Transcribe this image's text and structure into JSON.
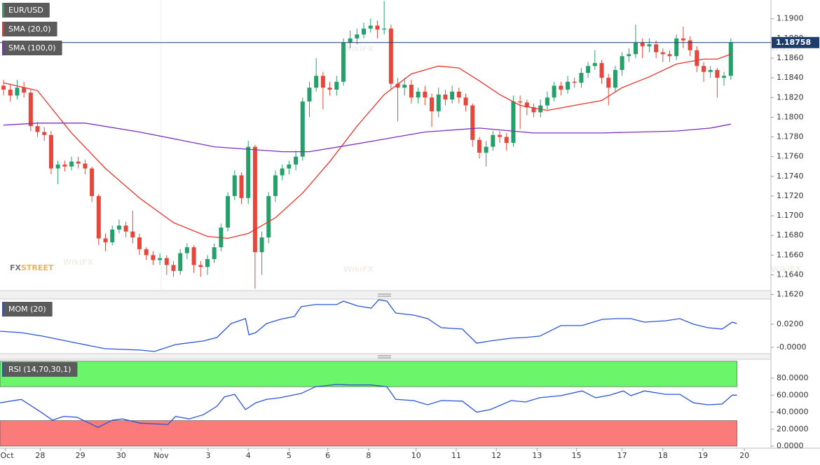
{
  "chart_data": [
    {
      "type": "candlestick",
      "xlim": [
        -0.52,
        112.9
      ],
      "ylim": [
        1.1624,
        1.1919
      ],
      "yticks": [
        {
          "value": 1.162,
          "label": "1.1620"
        },
        {
          "value": 1.164,
          "label": "1.1640"
        },
        {
          "value": 1.166,
          "label": "1.1660"
        },
        {
          "value": 1.168,
          "label": "1.1680"
        },
        {
          "value": 1.17,
          "label": "1.1700"
        },
        {
          "value": 1.172,
          "label": "1.1720"
        },
        {
          "value": 1.174,
          "label": "1.1740"
        },
        {
          "value": 1.176,
          "label": "1.1760"
        },
        {
          "value": 1.178,
          "label": "1.1780"
        },
        {
          "value": 1.18,
          "label": "1.1800"
        },
        {
          "value": 1.182,
          "label": "1.1820"
        },
        {
          "value": 1.184,
          "label": "1.1840"
        },
        {
          "value": 1.186,
          "label": "1.1860"
        },
        {
          "value": 1.188,
          "label": "1.1880"
        },
        {
          "value": 1.19,
          "label": "1.1900"
        }
      ],
      "last_price": 1.18758,
      "brand": [
        "FX",
        "STREET"
      ],
      "watermark": "WikiFX",
      "series": [
        {
          "name": "EUR/USD",
          "up_color": "#25a06b",
          "down_color": "#e4473b",
          "open": [
            1.1832,
            1.1828,
            1.1822,
            1.183,
            1.1825,
            1.1791,
            1.1785,
            1.1782,
            1.1748,
            1.1752,
            1.175,
            1.1755,
            1.1753,
            1.1748,
            1.172,
            1.1677,
            1.1673,
            1.1686,
            1.169,
            1.1684,
            1.1678,
            1.1666,
            1.166,
            1.1655,
            1.1657,
            1.165,
            1.1644,
            1.1662,
            1.1668,
            1.165,
            1.1648,
            1.1656,
            1.1668,
            1.1688,
            1.172,
            1.1741,
            1.1718,
            1.177,
            1.1663,
            1.1678,
            1.172,
            1.1741,
            1.1748,
            1.1752,
            1.176,
            1.1816,
            1.183,
            1.1842,
            1.183,
            1.1828,
            1.1836,
            1.1876,
            1.188,
            1.1884,
            1.189,
            1.1893,
            1.1889,
            1.189,
            1.1834,
            1.183,
            1.1833,
            1.182,
            1.1826,
            1.182,
            1.1806,
            1.1823,
            1.1818,
            1.1826,
            1.182,
            1.1812,
            1.1777,
            1.1764,
            1.177,
            1.1782,
            1.178,
            1.1774,
            1.1816,
            1.1815,
            1.181,
            1.1805,
            1.1812,
            1.182,
            1.1832,
            1.1828,
            1.1836,
            1.1835,
            1.1845,
            1.1852,
            1.1855,
            1.184,
            1.183,
            1.1848,
            1.1862,
            1.1864,
            1.1876,
            1.1872,
            1.1874,
            1.1866,
            1.1864,
            1.1862,
            1.188,
            1.1878,
            1.1868,
            1.1852,
            1.1846,
            1.1848,
            1.184,
            1.1842
          ],
          "high": [
            1.1838,
            1.1834,
            1.1838,
            1.1836,
            1.1828,
            1.1795,
            1.179,
            1.1786,
            1.1756,
            1.1756,
            1.176,
            1.176,
            1.1757,
            1.175,
            1.1722,
            1.1682,
            1.169,
            1.1696,
            1.1694,
            1.1705,
            1.1682,
            1.1668,
            1.1664,
            1.1662,
            1.166,
            1.1654,
            1.1666,
            1.1672,
            1.167,
            1.1654,
            1.166,
            1.1672,
            1.1692,
            1.1724,
            1.1746,
            1.1744,
            1.1776,
            1.1772,
            1.1684,
            1.1724,
            1.1746,
            1.1752,
            1.1756,
            1.1766,
            1.182,
            1.1836,
            1.186,
            1.1846,
            1.1836,
            1.1842,
            1.188,
            1.1888,
            1.189,
            1.1896,
            1.19,
            1.1898,
            1.1918,
            1.1894,
            1.184,
            1.184,
            1.1838,
            1.183,
            1.1832,
            1.1824,
            1.183,
            1.1828,
            1.1832,
            1.183,
            1.1824,
            1.1814,
            1.178,
            1.1776,
            1.1786,
            1.1786,
            1.1784,
            1.1822,
            1.1822,
            1.1818,
            1.1814,
            1.1818,
            1.1826,
            1.1836,
            1.1836,
            1.1842,
            1.184,
            1.185,
            1.1856,
            1.1868,
            1.1858,
            1.1844,
            1.1852,
            1.1866,
            1.187,
            1.1894,
            1.188,
            1.188,
            1.1878,
            1.187,
            1.1868,
            1.1884,
            1.1892,
            1.1882,
            1.1872,
            1.1856,
            1.1852,
            1.185,
            1.1846,
            1.188
          ],
          "low": [
            1.1822,
            1.1816,
            1.1818,
            1.182,
            1.1786,
            1.178,
            1.1776,
            1.1742,
            1.1732,
            1.1745,
            1.1746,
            1.1748,
            1.1742,
            1.1714,
            1.167,
            1.1664,
            1.167,
            1.1682,
            1.1678,
            1.1672,
            1.166,
            1.1655,
            1.165,
            1.165,
            1.164,
            1.1638,
            1.164,
            1.1656,
            1.1642,
            1.1638,
            1.164,
            1.1652,
            1.1664,
            1.1684,
            1.1716,
            1.1712,
            1.1712,
            1.1626,
            1.164,
            1.1672,
            1.1714,
            1.1736,
            1.1742,
            1.1746,
            1.1756,
            1.18,
            1.1826,
            1.1808,
            1.1822,
            1.1822,
            1.1832,
            1.187,
            1.1874,
            1.188,
            1.1886,
            1.188,
            1.1884,
            1.1828,
            1.1796,
            1.1822,
            1.1814,
            1.1814,
            1.1812,
            1.179,
            1.18,
            1.1812,
            1.1814,
            1.1814,
            1.1806,
            1.177,
            1.1758,
            1.175,
            1.1766,
            1.1774,
            1.1766,
            1.177,
            1.1788,
            1.1802,
            1.18,
            1.18,
            1.1808,
            1.1816,
            1.1822,
            1.1824,
            1.183,
            1.183,
            1.184,
            1.1848,
            1.1834,
            1.1812,
            1.1826,
            1.1842,
            1.1856,
            1.186,
            1.186,
            1.1866,
            1.186,
            1.1856,
            1.1856,
            1.1858,
            1.187,
            1.1862,
            1.1846,
            1.1836,
            1.184,
            1.182,
            1.1832,
            1.1838
          ],
          "close": [
            1.1828,
            1.1822,
            1.183,
            1.1825,
            1.1791,
            1.1785,
            1.1782,
            1.1748,
            1.1752,
            1.175,
            1.1755,
            1.1753,
            1.1748,
            1.172,
            1.1677,
            1.1673,
            1.1686,
            1.169,
            1.1684,
            1.1678,
            1.1666,
            1.166,
            1.1655,
            1.1657,
            1.165,
            1.1644,
            1.1662,
            1.1668,
            1.165,
            1.1648,
            1.1656,
            1.1668,
            1.1688,
            1.172,
            1.1741,
            1.1718,
            1.177,
            1.1663,
            1.1678,
            1.172,
            1.1741,
            1.1748,
            1.1752,
            1.176,
            1.1816,
            1.183,
            1.1842,
            1.183,
            1.1828,
            1.1836,
            1.1876,
            1.188,
            1.1884,
            1.189,
            1.1893,
            1.1889,
            1.189,
            1.1834,
            1.183,
            1.1833,
            1.182,
            1.1826,
            1.182,
            1.1806,
            1.1823,
            1.1818,
            1.1826,
            1.182,
            1.1812,
            1.1777,
            1.1764,
            1.177,
            1.1782,
            1.178,
            1.1774,
            1.1816,
            1.1815,
            1.181,
            1.1805,
            1.1812,
            1.182,
            1.1832,
            1.1828,
            1.1836,
            1.1835,
            1.1845,
            1.1852,
            1.1855,
            1.184,
            1.183,
            1.1848,
            1.1862,
            1.1864,
            1.1876,
            1.1872,
            1.1874,
            1.1866,
            1.1864,
            1.1862,
            1.188,
            1.1878,
            1.1868,
            1.1852,
            1.1846,
            1.1848,
            1.184,
            1.1842,
            1.1876
          ]
        },
        {
          "name": "SMA (20,0)",
          "color": "#e8332a",
          "x": [
            0,
            5,
            10,
            15,
            20,
            25,
            30,
            33,
            36,
            40,
            44,
            48,
            52,
            56,
            60,
            64,
            67,
            70,
            73,
            76,
            80,
            84,
            88,
            91,
            95,
            99,
            103,
            105,
            107
          ],
          "values": [
            1.1835,
            1.1827,
            1.1784,
            1.1748,
            1.1718,
            1.1693,
            1.1679,
            1.1677,
            1.1682,
            1.1698,
            1.1723,
            1.1755,
            1.1791,
            1.1823,
            1.1844,
            1.1852,
            1.185,
            1.1837,
            1.1823,
            1.1812,
            1.1807,
            1.1812,
            1.1817,
            1.183,
            1.1841,
            1.1854,
            1.1859,
            1.1859,
            1.1864
          ]
        },
        {
          "name": "SMA (100,0)",
          "color": "#7b2fbf",
          "x": [
            0,
            5,
            12,
            20,
            31,
            41,
            45,
            52,
            62,
            70,
            78,
            88,
            99,
            104,
            107
          ],
          "values": [
            1.1792,
            1.1794,
            1.1794,
            1.1785,
            1.177,
            1.1765,
            1.1765,
            1.1773,
            1.1785,
            1.1789,
            1.1784,
            1.1784,
            1.1786,
            1.1789,
            1.1793
          ]
        }
      ]
    },
    {
      "type": "line",
      "xlim": [
        -0.52,
        112.9
      ],
      "ylim": [
        -0.0055,
        0.0418
      ],
      "yticks": [
        {
          "value": 0.02,
          "label": "0.0200"
        },
        {
          "value": 0,
          "label": "-0.0000"
        }
      ],
      "series": [
        {
          "name": "MOM (20)",
          "color": "#2a55d4",
          "x": [
            -0.5,
            2.6,
            5.7,
            9.8,
            14.9,
            20.1,
            22.2,
            25.3,
            29.4,
            31.4,
            33.5,
            35.6,
            36.1,
            37.1,
            38.7,
            40.7,
            42.8,
            43.8,
            45.9,
            49,
            50,
            52.1,
            54.1,
            55.2,
            56.4,
            57.7,
            60.3,
            62.4,
            64.4,
            67.5,
            69.6,
            71.6,
            74.7,
            76.8,
            78.9,
            82,
            85.1,
            88.1,
            90.2,
            92.3,
            94.3,
            97.4,
            99.5,
            101.5,
            103.6,
            105.7,
            107.2,
            107.9
          ],
          "values": [
            0.0139,
            0.0127,
            0.0097,
            0.0048,
            -0.0012,
            -0.0024,
            -0.0036,
            0.0024,
            0.0055,
            0.0085,
            0.0206,
            0.0248,
            0.0109,
            0.0127,
            0.0206,
            0.0242,
            0.0267,
            0.0352,
            0.037,
            0.037,
            0.04,
            0.0358,
            0.0339,
            0.0412,
            0.04,
            0.0297,
            0.0279,
            0.0248,
            0.017,
            0.0158,
            0.0036,
            0.0055,
            0.0079,
            0.0085,
            0.0097,
            0.0188,
            0.0188,
            0.0242,
            0.0248,
            0.0248,
            0.0218,
            0.023,
            0.0248,
            0.02,
            0.017,
            0.0158,
            0.0218,
            0.0206
          ]
        }
      ]
    },
    {
      "type": "line",
      "xlim": [
        -0.52,
        112.9
      ],
      "ylim": [
        0,
        102.3
      ],
      "yticks": [
        {
          "value": 80,
          "label": "80.0000"
        },
        {
          "value": 60,
          "label": "60.0000"
        },
        {
          "value": 40,
          "label": "40.0000"
        },
        {
          "value": 20,
          "label": "20.0000"
        },
        {
          "value": 0,
          "label": "0.0000"
        }
      ],
      "xticks": [
        {
          "value": 0.3,
          "label": "Oct"
        },
        {
          "value": 5.4,
          "label": "28"
        },
        {
          "value": 11.3,
          "label": "29"
        },
        {
          "value": 17.3,
          "label": "30"
        },
        {
          "value": 23.2,
          "label": "Nov"
        },
        {
          "value": 30.1,
          "label": "3"
        },
        {
          "value": 36,
          "label": "4"
        },
        {
          "value": 42,
          "label": "5"
        },
        {
          "value": 47.7,
          "label": "6"
        },
        {
          "value": 53.7,
          "label": "8"
        },
        {
          "value": 60.7,
          "label": "10"
        },
        {
          "value": 66.6,
          "label": "11"
        },
        {
          "value": 72.5,
          "label": "12"
        },
        {
          "value": 78.5,
          "label": "13"
        },
        {
          "value": 84.3,
          "label": "15"
        },
        {
          "value": 91,
          "label": "17"
        },
        {
          "value": 97,
          "label": "18"
        },
        {
          "value": 102.9,
          "label": "19"
        },
        {
          "value": 109,
          "label": "20"
        }
      ],
      "bands": [
        {
          "from": 70,
          "to": 100,
          "color": "#6af56a"
        },
        {
          "from": 0,
          "to": 30,
          "color": "#fb7b7b"
        }
      ],
      "series": [
        {
          "name": "RSI (14,70,30,1)",
          "color": "#2a55d4",
          "x": [
            -0.5,
            2.6,
            5.7,
            7.2,
            8.8,
            10.8,
            13.9,
            16,
            17.5,
            20.1,
            24.2,
            25.3,
            27.3,
            29.4,
            31.4,
            32.5,
            34,
            35.6,
            37.1,
            38.7,
            40.7,
            43.8,
            45.9,
            49,
            51,
            54.1,
            56.4,
            57.7,
            60.3,
            62.4,
            64.4,
            67.5,
            69.6,
            71.6,
            74.7,
            76.8,
            78.9,
            82,
            85.1,
            87.1,
            89.2,
            91.2,
            92.3,
            94.3,
            97.4,
            99.5,
            101.5,
            103.6,
            105.7,
            107.2,
            107.9
          ],
          "values": [
            51,
            55,
            39,
            30.5,
            35,
            34,
            22,
            30.5,
            32,
            27,
            25.5,
            35,
            32,
            37,
            47,
            58,
            61,
            43,
            51,
            55,
            57,
            62,
            70,
            72.6,
            72,
            72,
            70,
            55,
            53.6,
            48.7,
            53.6,
            53,
            40,
            43,
            53.6,
            52,
            57,
            59.4,
            65,
            57,
            60,
            65,
            59.4,
            65,
            61,
            61,
            51,
            48.7,
            49.5,
            60,
            60
          ]
        }
      ]
    }
  ]
}
